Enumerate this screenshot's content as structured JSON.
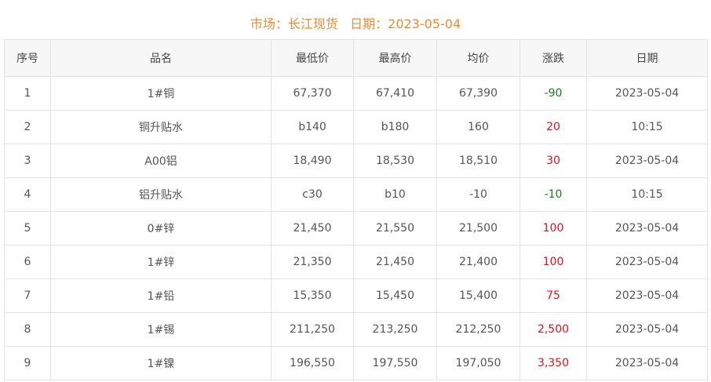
{
  "title": {
    "market_label": "市场：",
    "market": "长江现货",
    "date_label": "日期：",
    "date": "2023-05-04"
  },
  "colors": {
    "title": "#ef8a33",
    "up": "#e3101c",
    "down": "#1e7a1e"
  },
  "columns": [
    "序号",
    "品名",
    "最低价",
    "最高价",
    "均价",
    "涨跌",
    "日期"
  ],
  "rows": [
    [
      "1",
      "1#铜",
      "67,370",
      "67,410",
      "67,390",
      "-90",
      "2023-05-04"
    ],
    [
      "2",
      "铜升贴水",
      "b140",
      "b180",
      "160",
      "20",
      "10:15"
    ],
    [
      "3",
      "A00铝",
      "18,490",
      "18,530",
      "18,510",
      "30",
      "2023-05-04"
    ],
    [
      "4",
      "铝升贴水",
      "c30",
      "b10",
      "-10",
      "-10",
      "10:15"
    ],
    [
      "5",
      "0#锌",
      "21,450",
      "21,550",
      "21,500",
      "100",
      "2023-05-04"
    ],
    [
      "6",
      "1#锌",
      "21,350",
      "21,450",
      "21,400",
      "100",
      "2023-05-04"
    ],
    [
      "7",
      "1#铅",
      "15,350",
      "15,450",
      "15,400",
      "75",
      "2023-05-04"
    ],
    [
      "8",
      "1#锡",
      "211,250",
      "213,250",
      "212,250",
      "2,500",
      "2023-05-04"
    ],
    [
      "9",
      "1#镍",
      "196,550",
      "197,550",
      "197,050",
      "3,350",
      "2023-05-04"
    ]
  ]
}
